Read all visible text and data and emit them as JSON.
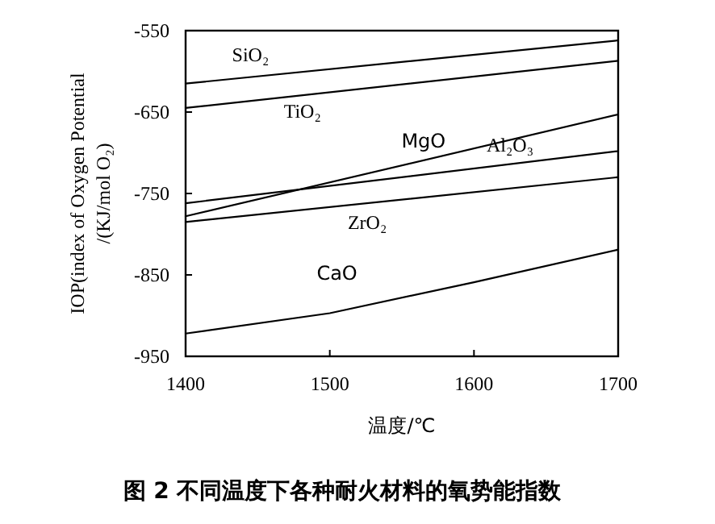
{
  "chart_data": {
    "type": "line",
    "title": "图 2 不同温度下各种耐火材料的氧势能指数",
    "xlabel": "温度/℃",
    "ylabel": "IOP(index of Oxygen Potential\n/(KJ/mol O₂)",
    "xlim": [
      1400,
      1700
    ],
    "ylim": [
      -950,
      -550
    ],
    "xticks": [
      1400,
      1500,
      1600,
      1700
    ],
    "yticks": [
      -950,
      -850,
      -750,
      -650,
      -550
    ],
    "grid": false,
    "marker": "none",
    "line_style": "solid",
    "series": [
      {
        "name": "SiO₂",
        "color": "#000000",
        "x": [
          1400,
          1700
        ],
        "values": [
          -615,
          -562
        ]
      },
      {
        "name": "TiO₂",
        "color": "#000000",
        "x": [
          1400,
          1700
        ],
        "values": [
          -645,
          -587
        ]
      },
      {
        "name": "MgO",
        "color": "#000000",
        "x": [
          1400,
          1700
        ],
        "values": [
          -778,
          -653
        ]
      },
      {
        "name": "Al₂O₃",
        "color": "#000000",
        "x": [
          1400,
          1700
        ],
        "values": [
          -762,
          -698
        ]
      },
      {
        "name": "ZrO₂",
        "color": "#000000",
        "x": [
          1400,
          1700
        ],
        "values": [
          -785,
          -730
        ]
      },
      {
        "name": "CaO",
        "color": "#000000",
        "x": [
          1400,
          1500,
          1600,
          1700
        ],
        "values": [
          -922,
          -897,
          -859,
          -819
        ]
      }
    ]
  }
}
